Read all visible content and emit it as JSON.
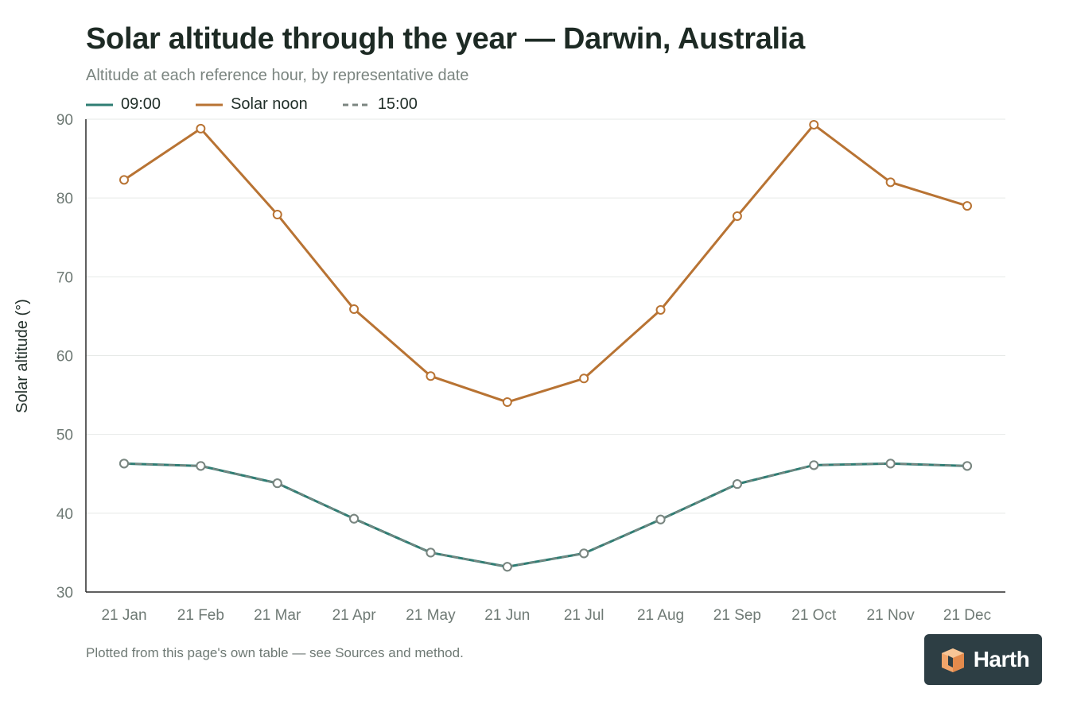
{
  "header": {
    "title": "Solar altitude through the year — Darwin, Australia",
    "subtitle": "Altitude at each reference hour, by representative date"
  },
  "footnote": "Plotted from this page's own table — see Sources and method.",
  "brand": {
    "name": "Harth",
    "icon": "cube-logo-icon"
  },
  "chart_data": {
    "type": "line",
    "title": "Solar altitude through the year — Darwin, Australia",
    "subtitle": "Altitude at each reference hour, by representative date",
    "xlabel": "",
    "ylabel": "Solar altitude (°)",
    "ylim": [
      30,
      90
    ],
    "yticks": [
      30,
      40,
      50,
      60,
      70,
      80,
      90
    ],
    "grid": true,
    "legend": "top-left",
    "categories": [
      "21 Jan",
      "21 Feb",
      "21 Mar",
      "21 Apr",
      "21 May",
      "21 Jun",
      "21 Jul",
      "21 Aug",
      "21 Sep",
      "21 Oct",
      "21 Nov",
      "21 Dec"
    ],
    "series": [
      {
        "name": "09:00",
        "color": "#2e7d73",
        "dash": "solid",
        "values": [
          46.3,
          46.0,
          43.8,
          39.3,
          35.0,
          33.2,
          34.9,
          39.2,
          43.7,
          46.1,
          46.3,
          46.0
        ]
      },
      {
        "name": "Solar noon",
        "color": "#b87333",
        "dash": "solid",
        "values": [
          82.3,
          88.8,
          77.9,
          65.9,
          57.4,
          54.1,
          57.1,
          65.8,
          77.7,
          89.3,
          82.0,
          79.0
        ]
      },
      {
        "name": "15:00",
        "color": "#7b8580",
        "dash": "dashed",
        "values": [
          46.3,
          46.0,
          43.8,
          39.3,
          35.0,
          33.2,
          34.9,
          39.2,
          43.7,
          46.1,
          46.3,
          46.0
        ]
      }
    ]
  }
}
